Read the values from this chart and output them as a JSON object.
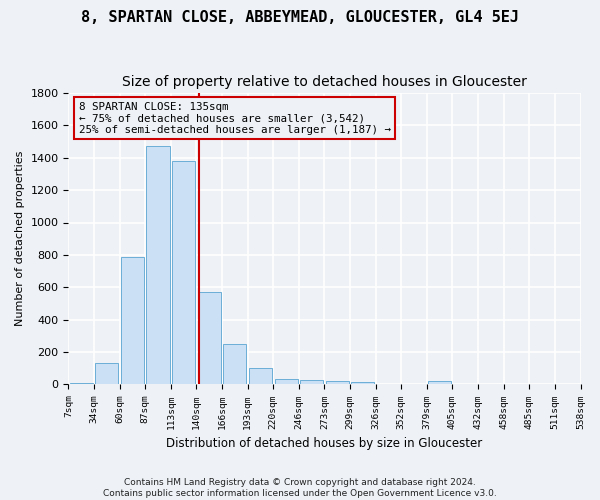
{
  "title": "8, SPARTAN CLOSE, ABBEYMEAD, GLOUCESTER, GL4 5EJ",
  "subtitle": "Size of property relative to detached houses in Gloucester",
  "xlabel": "Distribution of detached houses by size in Gloucester",
  "ylabel": "Number of detached properties",
  "footer": "Contains HM Land Registry data © Crown copyright and database right 2024.\nContains public sector information licensed under the Open Government Licence v3.0.",
  "bin_labels": [
    "7sqm",
    "34sqm",
    "60sqm",
    "87sqm",
    "113sqm",
    "140sqm",
    "166sqm",
    "193sqm",
    "220sqm",
    "246sqm",
    "273sqm",
    "299sqm",
    "326sqm",
    "352sqm",
    "379sqm",
    "405sqm",
    "432sqm",
    "458sqm",
    "485sqm",
    "511sqm",
    "538sqm"
  ],
  "bar_values": [
    10,
    130,
    790,
    1470,
    1380,
    570,
    250,
    100,
    35,
    25,
    20,
    15,
    0,
    0,
    20,
    0,
    0,
    0,
    0,
    0
  ],
  "bar_color": "#cce0f5",
  "bar_edgecolor": "#6aaed6",
  "property_line_x": 4.62,
  "property_line_color": "#cc0000",
  "annotation_text": "8 SPARTAN CLOSE: 135sqm\n← 75% of detached houses are smaller (3,542)\n25% of semi-detached houses are larger (1,187) →",
  "annotation_box_color": "#cc0000",
  "ylim": [
    0,
    1800
  ],
  "background_color": "#eef2f7",
  "grid_color": "#ffffff",
  "yticks": [
    0,
    200,
    400,
    600,
    800,
    1000,
    1200,
    1400,
    1600,
    1800
  ],
  "title_fontsize": 11,
  "subtitle_fontsize": 10
}
